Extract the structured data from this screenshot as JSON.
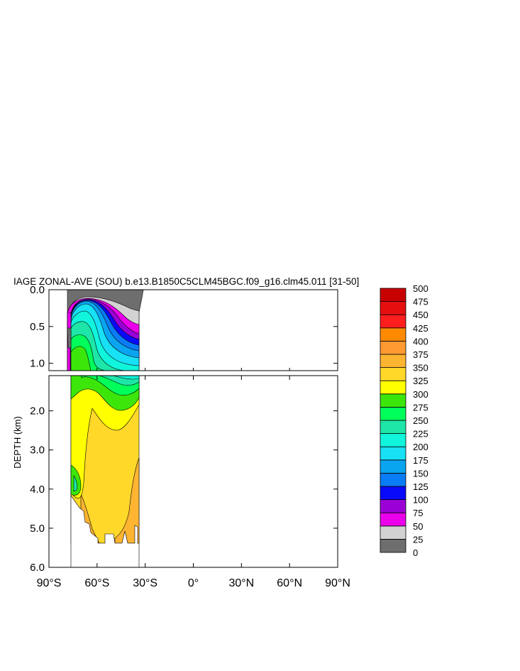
{
  "chart_data": {
    "type": "heatmap",
    "title": "IAGE ZONAL-AVE (SOU) b.e13.B1850C5CLM45BGC.f09_g16.clm45.011 [31-50]",
    "ylabel": "DEPTH (km)",
    "xlabel": "",
    "xlim": [
      -90,
      90
    ],
    "x_ticks": [
      {
        "value": -90,
        "label": "90°S"
      },
      {
        "value": -60,
        "label": "60°S"
      },
      {
        "value": -30,
        "label": "30°S"
      },
      {
        "value": 0,
        "label": "0°"
      },
      {
        "value": 30,
        "label": "30°N"
      },
      {
        "value": 60,
        "label": "60°N"
      },
      {
        "value": 90,
        "label": "90°N"
      }
    ],
    "upper_panel": {
      "ylim": [
        0,
        1.1
      ],
      "y_ticks": [
        {
          "value": 0.0,
          "label": "0.0"
        },
        {
          "value": 0.5,
          "label": "0.5"
        },
        {
          "value": 1.0,
          "label": "1.0"
        }
      ]
    },
    "lower_panel": {
      "ylim": [
        1.1,
        6.0
      ],
      "y_ticks": [
        {
          "value": 2.0,
          "label": "2.0"
        },
        {
          "value": 3.0,
          "label": "3.0"
        },
        {
          "value": 4.0,
          "label": "4.0"
        },
        {
          "value": 5.0,
          "label": "5.0"
        },
        {
          "value": 6.0,
          "label": "6.0"
        }
      ]
    },
    "colorbar": {
      "levels": [
        "0",
        "25",
        "50",
        "75",
        "100",
        "125",
        "150",
        "175",
        "200",
        "225",
        "250",
        "275",
        "300",
        "325",
        "350",
        "375",
        "400",
        "425",
        "450",
        "475",
        "500"
      ],
      "colors": [
        "#6e6e6e",
        "#d2d2d2",
        "#ea00ea",
        "#9a00d6",
        "#0a0afa",
        "#0a7cf5",
        "#0aa4f0",
        "#18e0f5",
        "#10f5dc",
        "#1ee6a8",
        "#00ff5a",
        "#3ce60a",
        "#ffff00",
        "#ffd82a",
        "#ffb432",
        "#ff9a32",
        "#ff8a00",
        "#ff1e1e",
        "#e60f0f",
        "#c80000"
      ]
    },
    "data_extent": {
      "lat_min": -77,
      "lat_max": -33,
      "max_depth_km": 5.4
    },
    "field_samples": {
      "upper": [
        {
          "lat": -75,
          "depth_km": 0.1,
          "value": 10
        },
        {
          "lat": -55,
          "depth_km": 0.05,
          "value": 5
        },
        {
          "lat": -40,
          "depth_km": 0.4,
          "value": 60
        },
        {
          "lat": -40,
          "depth_km": 0.7,
          "value": 150
        },
        {
          "lat": -65,
          "depth_km": 0.4,
          "value": 200
        },
        {
          "lat": -65,
          "depth_km": 0.9,
          "value": 300
        }
      ],
      "lower": [
        {
          "lat": -60,
          "depth_km": 1.3,
          "value": 260
        },
        {
          "lat": -45,
          "depth_km": 1.8,
          "value": 290
        },
        {
          "lat": -72,
          "depth_km": 2.5,
          "value": 320
        },
        {
          "lat": -55,
          "depth_km": 3.5,
          "value": 340
        },
        {
          "lat": -38,
          "depth_km": 4.2,
          "value": 370
        },
        {
          "lat": -74,
          "depth_km": 4.0,
          "value": 275
        },
        {
          "lat": -50,
          "depth_km": 5.2,
          "value": 380
        }
      ]
    }
  }
}
